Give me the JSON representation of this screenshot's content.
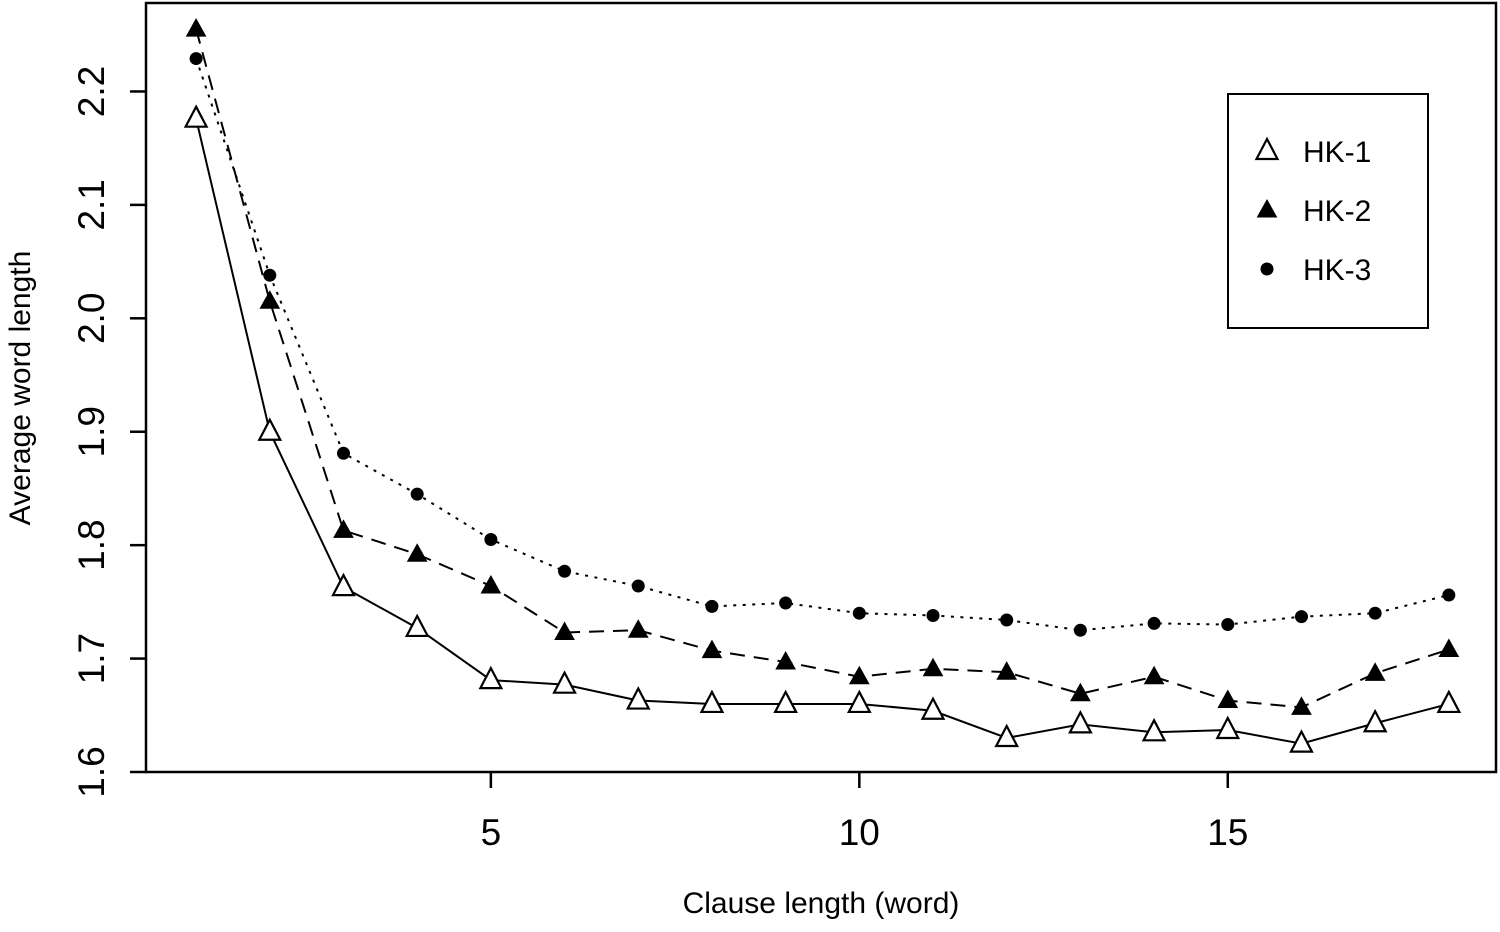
{
  "figure": {
    "background_color": "#ffffff",
    "ink_color": "#000000"
  },
  "chart_data": {
    "type": "line",
    "title": "",
    "xlabel": "Clause length (word)",
    "ylabel": "Average word length",
    "x": [
      1,
      2,
      3,
      4,
      5,
      6,
      7,
      8,
      9,
      10,
      11,
      12,
      13,
      14,
      15,
      16,
      17,
      18
    ],
    "series": [
      {
        "name": "HK-1",
        "marker": "triangle-open",
        "line_style": "solid",
        "color": "#000000",
        "values": [
          2.176,
          1.9,
          1.763,
          1.727,
          1.681,
          1.677,
          1.663,
          1.66,
          1.66,
          1.66,
          1.654,
          1.63,
          1.642,
          1.635,
          1.637,
          1.625,
          1.643,
          1.66
        ]
      },
      {
        "name": "HK-2",
        "marker": "triangle-filled",
        "line_style": "dashed",
        "color": "#000000",
        "values": [
          2.255,
          2.015,
          1.813,
          1.792,
          1.764,
          1.723,
          1.725,
          1.707,
          1.697,
          1.684,
          1.691,
          1.688,
          1.669,
          1.684,
          1.663,
          1.657,
          1.687,
          1.708
        ]
      },
      {
        "name": "HK-3",
        "marker": "circle-filled",
        "line_style": "dotted",
        "color": "#000000",
        "values": [
          2.229,
          2.038,
          1.881,
          1.845,
          1.805,
          1.777,
          1.764,
          1.746,
          1.749,
          1.74,
          1.738,
          1.734,
          1.725,
          1.731,
          1.73,
          1.737,
          1.74,
          1.756
        ]
      }
    ],
    "xticks": [
      "5",
      "10",
      "15"
    ],
    "yticks": [
      "1.6",
      "1.7",
      "1.8",
      "1.9",
      "2.0",
      "2.1",
      "2.2"
    ],
    "xlim": [
      0.32,
      18.64
    ],
    "ylim": [
      1.6,
      2.278
    ],
    "grid": false,
    "legend_position": "top-right-inset",
    "legend_entries": [
      "HK-1",
      "HK-2",
      "HK-3"
    ]
  }
}
